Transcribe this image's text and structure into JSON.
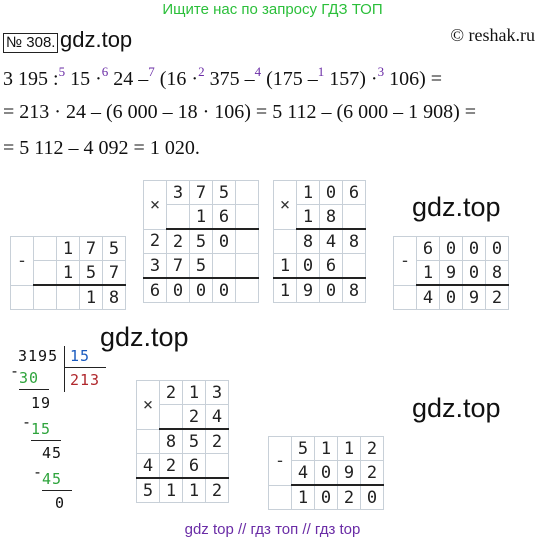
{
  "banner": "Ищите нас по запросу ГДЗ ТОП",
  "task_number": "№ 308.",
  "watermark": "gdz.top",
  "copyright": "© reshak.ru",
  "expr": {
    "p1": "3 195 :",
    "s1": "5",
    "p2": " 15 ·",
    "s2": "6",
    "p3": " 24 –",
    "s3": "7",
    "p4": " (16 ·",
    "s4": "2",
    "p5": " 375 –",
    "s5": "4",
    "p6": " (175 –",
    "s6": "1",
    "p7": " 157) ·",
    "s7": "3",
    "p8": " 106) ="
  },
  "line2": "= 213 · 24 – (6 000 – 18 · 106) = 5 112 – (6 000 – 1 908) =",
  "line3": "= 5 112 – 4 092 = 1 020.",
  "calc": {
    "sub1": {
      "op": "-",
      "a": [
        "1",
        "7",
        "5"
      ],
      "b": [
        "1",
        "5",
        "7"
      ],
      "r": [
        "1",
        "8"
      ]
    },
    "mul1": {
      "op": "×",
      "a": [
        "3",
        "7",
        "5"
      ],
      "b": [
        "1",
        "6"
      ],
      "p1": [
        "2",
        "2",
        "5",
        "0"
      ],
      "p2": [
        "3",
        "7",
        "5"
      ],
      "r": [
        "6",
        "0",
        "0",
        "0"
      ]
    },
    "mul2": {
      "op": "×",
      "a": [
        "1",
        "0",
        "6"
      ],
      "b": [
        "1",
        "8"
      ],
      "p1": [
        "8",
        "4",
        "8"
      ],
      "p2": [
        "1",
        "0",
        "6"
      ],
      "r": [
        "1",
        "9",
        "0",
        "8"
      ]
    },
    "sub2": {
      "op": "-",
      "a": [
        "6",
        "0",
        "0",
        "0"
      ],
      "b": [
        "1",
        "9",
        "0",
        "8"
      ],
      "r": [
        "4",
        "0",
        "9",
        "2"
      ]
    },
    "mul3": {
      "op": "×",
      "a": [
        "2",
        "1",
        "3"
      ],
      "b": [
        "2",
        "4"
      ],
      "p1": [
        "8",
        "5",
        "2"
      ],
      "p2": [
        "4",
        "2",
        "6"
      ],
      "r": [
        "5",
        "1",
        "1",
        "2"
      ]
    },
    "sub3": {
      "op": "-",
      "a": [
        "5",
        "1",
        "1",
        "2"
      ],
      "b": [
        "4",
        "0",
        "9",
        "2"
      ],
      "r": [
        "1",
        "0",
        "2",
        "0"
      ]
    }
  },
  "division": {
    "dividend": "3195",
    "divisor": "15",
    "quotient": "213",
    "s1": "30",
    "r1": "19",
    "s2": "15",
    "r2": "45",
    "s3": "45",
    "r3": "0",
    "minus": "-"
  },
  "footer": "gdz top  //  гдз топ  //  гдз top"
}
